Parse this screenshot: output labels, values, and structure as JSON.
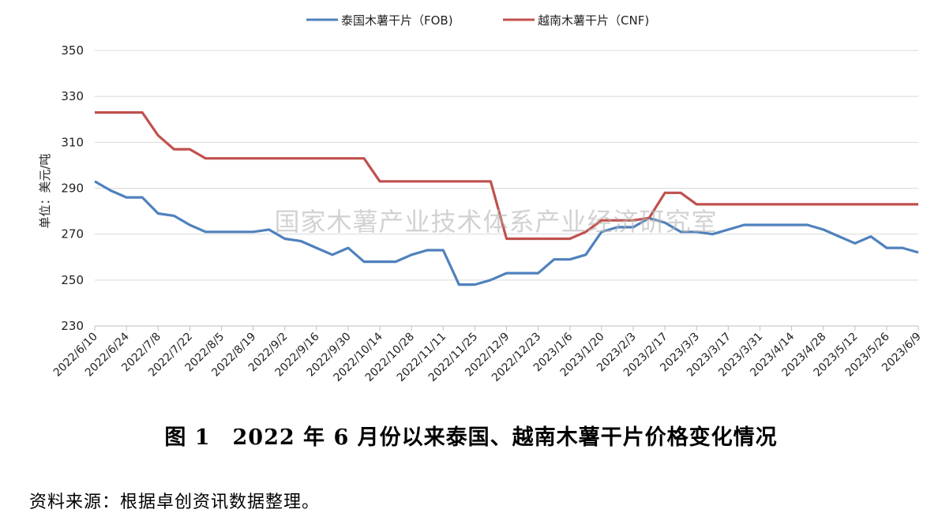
{
  "chart_data": {
    "type": "line",
    "ylabel": "单位：美元/吨",
    "ylim": [
      230,
      350
    ],
    "yticks": [
      230,
      250,
      270,
      290,
      310,
      330,
      350
    ],
    "grid": true,
    "legend_position": "top",
    "x_tick_labels": [
      "2022/6/10",
      "2022/6/24",
      "2022/7/8",
      "2022/7/22",
      "2022/8/5",
      "2022/8/19",
      "2022/9/2",
      "2022/9/16",
      "2022/9/30",
      "2022/10/14",
      "2022/10/28",
      "2022/11/11",
      "2022/11/25",
      "2022/12/9",
      "2022/12/23",
      "2023/1/6",
      "2023/1/20",
      "2023/2/3",
      "2023/2/17",
      "2023/3/3",
      "2023/3/17",
      "2023/3/31",
      "2023/4/14",
      "2023/4/28",
      "2023/5/12",
      "2023/5/26",
      "2023/6/9"
    ],
    "series": [
      {
        "name": "泰国木薯干片（FOB)",
        "color": "#4f81bd",
        "values": [
          293,
          289,
          286,
          286,
          279,
          278,
          274,
          271,
          271,
          271,
          271,
          272,
          268,
          267,
          264,
          261,
          264,
          258,
          258,
          258,
          261,
          263,
          263,
          248,
          248,
          250,
          253,
          253,
          253,
          259,
          259,
          261,
          271,
          273,
          273,
          277,
          275,
          271,
          271,
          270,
          272,
          274,
          274,
          274,
          274,
          274,
          272,
          269,
          266,
          269,
          264,
          264,
          262
        ]
      },
      {
        "name": "越南木薯干片（CNF)",
        "color": "#c0504d",
        "values": [
          323,
          323,
          323,
          323,
          313,
          307,
          307,
          303,
          303,
          303,
          303,
          303,
          303,
          303,
          303,
          303,
          303,
          303,
          293,
          293,
          293,
          293,
          293,
          293,
          293,
          293,
          268,
          268,
          268,
          268,
          268,
          271,
          276,
          276,
          276,
          277,
          288,
          288,
          283,
          283,
          283,
          283,
          283,
          283,
          283,
          283,
          283,
          283,
          283,
          283,
          283,
          283,
          283
        ]
      }
    ]
  },
  "watermark": "国家木薯产业技术体系产业经济研究室",
  "caption": "图 1　2022 年 6 月份以来泰国、越南木薯干片价格变化情况",
  "source": "资料来源：根据卓创资讯数据整理。"
}
